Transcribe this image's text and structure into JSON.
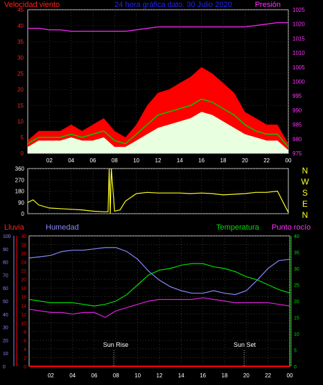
{
  "header": {
    "title": "24 hora gráfica dato. 30 Julio 2020",
    "left_label": "Velocidad viento",
    "right_label": "Presión"
  },
  "bottom_labels": {
    "lluvia": "Lluvia",
    "humedad": "Humedad",
    "temperatura": "Temperatura",
    "punto_rocio": "Punto rocío"
  },
  "compass": [
    "N",
    "W",
    "S",
    "E",
    "N"
  ],
  "annotations": {
    "sunrise": "Sun Rise",
    "sunset": "Sun Set"
  },
  "colors": {
    "wind_gust": "#ff0000",
    "wind_avg": "#00cc00",
    "wind_speed": "#e8ffe0",
    "pressure": "#dd22dd",
    "direction": "#ffff22",
    "humidity": "#8888ff",
    "temperature": "#00dd00",
    "dewpoint": "#dd22dd",
    "rain": "#ff0000",
    "left_axis": "#ff2222",
    "right_axis": "#ff33ff",
    "title": "#2222ff"
  },
  "chart_data": [
    {
      "type": "line",
      "name": "wind-pressure",
      "x_ticks": [
        "02",
        "04",
        "06",
        "08",
        "10",
        "12",
        "14",
        "16",
        "18",
        "20",
        "22",
        "00"
      ],
      "xlim": [
        0,
        24
      ],
      "y_left_ticks": [
        0,
        5,
        10,
        15,
        20,
        25,
        30,
        35,
        40,
        45
      ],
      "ylim_left": [
        0,
        45
      ],
      "y_right_ticks": [
        975,
        980,
        985,
        990,
        995,
        1000,
        1005,
        1010,
        1015,
        1020,
        1025
      ],
      "ylim_right": [
        975,
        1025
      ],
      "x": [
        0,
        1,
        2,
        3,
        4,
        5,
        6,
        7,
        8,
        9,
        10,
        11,
        12,
        13,
        14,
        15,
        16,
        17,
        18,
        19,
        20,
        21,
        22,
        23,
        24
      ],
      "series": [
        {
          "name": "Velocidad viento (ráfaga)",
          "axis": "left",
          "values": [
            4,
            7,
            7,
            7,
            9,
            7,
            9,
            11,
            7,
            5,
            9,
            15,
            19,
            20,
            22,
            24,
            27,
            25,
            22,
            19,
            13,
            11,
            9,
            9,
            3
          ]
        },
        {
          "name": "Velocidad viento (media)",
          "axis": "left",
          "values": [
            3,
            5,
            5,
            5,
            6,
            5,
            6,
            7,
            4,
            3,
            6,
            9,
            12,
            13,
            14,
            15,
            17,
            16,
            14,
            12,
            9,
            7,
            6,
            6,
            2
          ]
        },
        {
          "name": "Velocidad viento",
          "axis": "left",
          "values": [
            2,
            4,
            4,
            4,
            5,
            4,
            4,
            5,
            2,
            2,
            4,
            6,
            8,
            9,
            10,
            11,
            13,
            12,
            10,
            8,
            6,
            5,
            4,
            4,
            1
          ]
        },
        {
          "name": "Presión",
          "axis": "right",
          "values": [
            1018.5,
            1018.5,
            1018,
            1018,
            1017.5,
            1017.5,
            1017.5,
            1017.5,
            1017.5,
            1017.5,
            1018,
            1018.5,
            1019,
            1019,
            1019,
            1019,
            1019,
            1019,
            1019,
            1019,
            1019,
            1019.5,
            1020,
            1020.5,
            1020.5
          ]
        }
      ]
    },
    {
      "type": "line",
      "name": "wind-direction",
      "x_ticks": [],
      "xlim": [
        0,
        24
      ],
      "y_ticks": [
        0,
        90,
        180,
        270,
        360
      ],
      "ylim": [
        0,
        360
      ],
      "x": [
        0,
        0.5,
        1,
        2,
        3,
        4,
        5,
        6,
        7,
        7.4,
        7.5,
        7.6,
        7.7,
        8,
        8.5,
        9,
        10,
        11,
        12,
        13,
        14,
        15,
        16,
        17,
        18,
        19,
        20,
        21,
        22,
        23,
        23.7,
        24
      ],
      "values": [
        90,
        110,
        70,
        45,
        40,
        35,
        30,
        20,
        15,
        15,
        360,
        0,
        360,
        20,
        30,
        100,
        160,
        170,
        165,
        165,
        165,
        160,
        165,
        160,
        150,
        155,
        160,
        170,
        170,
        180,
        60,
        10
      ]
    },
    {
      "type": "line",
      "name": "humidity-temperature",
      "x_ticks": [
        "02",
        "04",
        "06",
        "08",
        "10",
        "12",
        "14",
        "16",
        "18",
        "20",
        "22",
        "00"
      ],
      "xlim": [
        0,
        24
      ],
      "y_ticks_humidity": [
        0,
        10,
        20,
        30,
        40,
        50,
        60,
        70,
        80,
        90,
        100
      ],
      "ylim_humidity": [
        0,
        100
      ],
      "y_ticks_rain": [
        0,
        2,
        4,
        6,
        8,
        10,
        12,
        14,
        16,
        18,
        20,
        22,
        24,
        26,
        28,
        30
      ],
      "ylim_rain": [
        0,
        30
      ],
      "y_ticks_temp": [
        0,
        5,
        10,
        15,
        20,
        25,
        30,
        35,
        40
      ],
      "ylim_temp": [
        0,
        40
      ],
      "x": [
        0,
        1,
        2,
        3,
        4,
        5,
        6,
        7,
        8,
        9,
        10,
        11,
        12,
        13,
        14,
        15,
        16,
        17,
        18,
        19,
        20,
        21,
        22,
        23,
        24
      ],
      "series": [
        {
          "name": "Humedad",
          "axis": "humidity",
          "values": [
            83,
            84,
            85,
            88,
            89,
            89,
            90,
            91,
            91,
            88,
            82,
            73,
            66,
            61,
            58,
            56,
            56,
            58,
            56,
            55,
            58,
            66,
            75,
            81,
            82
          ]
        },
        {
          "name": "Temperatura",
          "axis": "temp",
          "values": [
            20.5,
            20,
            19.5,
            19.5,
            19.5,
            19,
            18.5,
            19,
            20,
            22,
            25,
            28,
            29.5,
            30,
            31,
            31.5,
            31.5,
            30.5,
            30,
            29,
            27.5,
            26.5,
            25,
            23.5,
            22.5
          ]
        },
        {
          "name": "Punto rocío",
          "axis": "temp",
          "values": [
            17.5,
            17,
            16.5,
            16.5,
            16,
            16.5,
            16.5,
            15,
            17,
            18,
            19,
            20,
            20.5,
            20.5,
            20.5,
            20.5,
            21,
            20.5,
            20,
            19.5,
            19.5,
            19.5,
            19.5,
            19,
            18.5
          ]
        },
        {
          "name": "Lluvia",
          "axis": "rain",
          "values": [
            0,
            0,
            0,
            0,
            0,
            0,
            0,
            0,
            0,
            0,
            0,
            0,
            0,
            0,
            0,
            0,
            0,
            0,
            0,
            0,
            0,
            0,
            0,
            0,
            0
          ]
        }
      ],
      "events": [
        {
          "label": "Sun Rise",
          "x": 7.8
        },
        {
          "label": "Sun Set",
          "x": 19.8
        }
      ]
    }
  ]
}
